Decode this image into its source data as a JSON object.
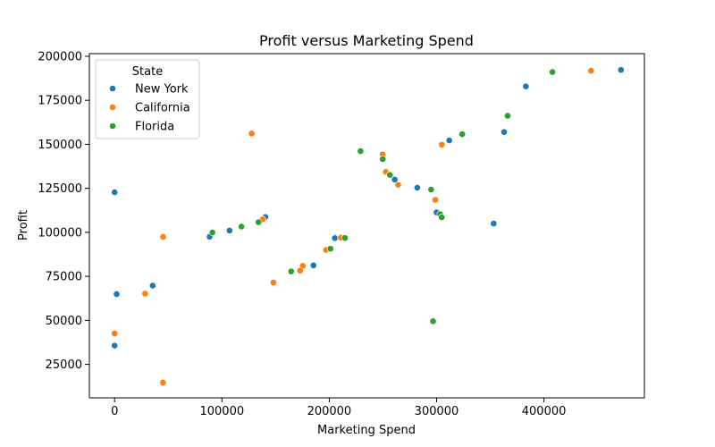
{
  "chart_data": {
    "type": "scatter",
    "title": "Profit versus Marketing Spend",
    "xlabel": "Marketing Spend",
    "ylabel": "Profit",
    "xlim": [
      -23500,
      493600
    ],
    "ylim": [
      6000,
      201500
    ],
    "xticks": [
      0,
      100000,
      200000,
      300000,
      400000
    ],
    "xtick_labels": [
      "0",
      "100000",
      "200000",
      "300000",
      "400000"
    ],
    "yticks": [
      25000,
      50000,
      75000,
      100000,
      125000,
      150000,
      175000,
      200000
    ],
    "ytick_labels": [
      "25000",
      "50000",
      "75000",
      "100000",
      "125000",
      "150000",
      "175000",
      "200000"
    ],
    "grid": false,
    "legend": {
      "title": "State",
      "placement": "top-left"
    },
    "series": [
      {
        "name": "New York",
        "color": "#1f77b4",
        "points": [
          [
            471784,
            192262
          ],
          [
            383200,
            182902
          ],
          [
            362862,
            156991
          ],
          [
            311800,
            152212
          ],
          [
            261000,
            129918
          ],
          [
            282000,
            125371
          ],
          [
            300000,
            111313
          ],
          [
            353184,
            105008
          ],
          [
            140500,
            108734
          ],
          [
            107100,
            101005
          ],
          [
            88500,
            97483
          ],
          [
            205200,
            96712
          ],
          [
            185300,
            81229
          ],
          [
            35500,
            69759
          ],
          [
            1900,
            64927
          ],
          [
            0,
            122777
          ],
          [
            0,
            35673
          ]
        ]
      },
      {
        "name": "California",
        "color": "#ff7f0e",
        "points": [
          [
            443899,
            191792
          ],
          [
            127716,
            156123
          ],
          [
            304900,
            149760
          ],
          [
            249744,
            144259
          ],
          [
            252700,
            134308
          ],
          [
            264200,
            126993
          ],
          [
            298800,
            118474
          ],
          [
            137962,
            107404
          ],
          [
            45173,
            97427
          ],
          [
            210800,
            97027
          ],
          [
            197000,
            90000
          ],
          [
            175300,
            81005
          ],
          [
            172800,
            78240
          ],
          [
            148001,
            71498
          ],
          [
            28334,
            65200
          ],
          [
            0,
            42560
          ],
          [
            45100,
            14681
          ]
        ]
      },
      {
        "name": "Florida",
        "color": "#2ca02c",
        "points": [
          [
            407934,
            191050
          ],
          [
            366168,
            166188
          ],
          [
            323877,
            155753
          ],
          [
            229161,
            146122
          ],
          [
            249839,
            141586
          ],
          [
            256513,
            132602
          ],
          [
            294920,
            124267
          ],
          [
            303320,
            110353
          ],
          [
            304769,
            108552
          ],
          [
            134050,
            105734
          ],
          [
            118148,
            103282
          ],
          [
            91131,
            99938
          ],
          [
            214635,
            96779
          ],
          [
            201127,
            90708
          ],
          [
            164471,
            77798
          ],
          [
            296700,
            49490
          ]
        ]
      }
    ]
  }
}
